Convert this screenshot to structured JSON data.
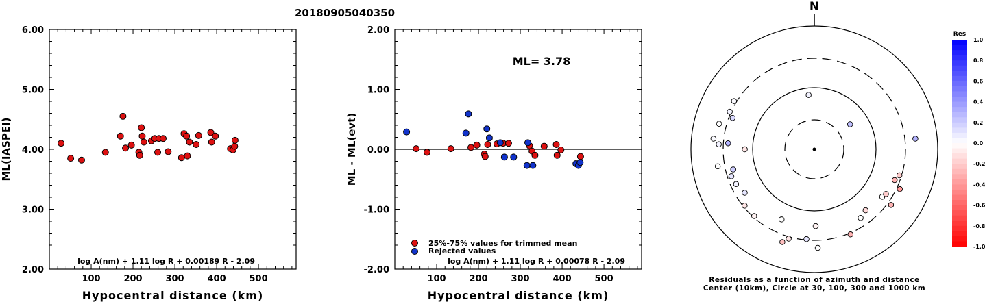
{
  "figure_title": "20180905040350",
  "chart_data": [
    {
      "type": "scatter",
      "ylabel": "ML(IASPEI)",
      "xlabel": "Hypocentral distance (km)",
      "xlim": [
        0,
        590
      ],
      "ylim": [
        2.0,
        6.0
      ],
      "xticks": [
        "100",
        "200",
        "300",
        "400",
        "500"
      ],
      "yticks": [
        "2.00",
        "3.00",
        "4.00",
        "5.00",
        "6.00"
      ],
      "formula": "log A(nm) + 1.11 log R + 0.00189 R - 2.09",
      "point_color": "#dd1111",
      "points": [
        [
          28,
          4.1
        ],
        [
          51,
          3.85
        ],
        [
          77,
          3.82
        ],
        [
          134,
          3.95
        ],
        [
          170,
          4.22
        ],
        [
          176,
          4.55
        ],
        [
          182,
          4.02
        ],
        [
          196,
          4.07
        ],
        [
          214,
          3.95
        ],
        [
          216,
          3.9
        ],
        [
          220,
          4.36
        ],
        [
          222,
          4.22
        ],
        [
          226,
          4.12
        ],
        [
          244,
          4.14
        ],
        [
          252,
          4.18
        ],
        [
          259,
          3.95
        ],
        [
          262,
          4.18
        ],
        [
          272,
          4.18
        ],
        [
          284,
          3.96
        ],
        [
          316,
          3.86
        ],
        [
          322,
          4.26
        ],
        [
          328,
          4.22
        ],
        [
          330,
          3.89
        ],
        [
          335,
          4.12
        ],
        [
          351,
          4.08
        ],
        [
          357,
          4.23
        ],
        [
          386,
          4.28
        ],
        [
          388,
          4.12
        ],
        [
          397,
          4.22
        ],
        [
          433,
          4.01
        ],
        [
          439,
          3.99
        ],
        [
          443,
          4.05
        ],
        [
          444,
          4.15
        ]
      ]
    },
    {
      "type": "scatter",
      "ylabel": "ML - ML(evt)",
      "xlabel": "Hypocentral distance (km)",
      "xlim": [
        0,
        590
      ],
      "ylim": [
        -2.0,
        2.0
      ],
      "xticks": [
        "100",
        "200",
        "300",
        "400",
        "500"
      ],
      "yticks": [
        "-2.00",
        "-1.00",
        "0.00",
        "1.00",
        "2.00"
      ],
      "annotation": "ML= 3.78",
      "formula": "log A(nm) + 1.11 log R + 0.00078 R - 2.09",
      "legend": [
        {
          "label": "25%-75% values for trimmed mean",
          "color": "#dd1111"
        },
        {
          "label": "Rejected values",
          "color": "#1133cc"
        }
      ],
      "series": [
        {
          "name": "25%-75% values for trimmed mean",
          "color": "#dd1111",
          "points": [
            [
              51,
              0.01
            ],
            [
              77,
              -0.05
            ],
            [
              134,
              0.01
            ],
            [
              182,
              0.03
            ],
            [
              196,
              0.07
            ],
            [
              214,
              -0.08
            ],
            [
              216,
              -0.12
            ],
            [
              222,
              0.08
            ],
            [
              244,
              0.09
            ],
            [
              259,
              0.1
            ],
            [
              272,
              0.1
            ],
            [
              322,
              0.06
            ],
            [
              328,
              -0.03
            ],
            [
              335,
              -0.1
            ],
            [
              357,
              0.05
            ],
            [
              386,
              0.08
            ],
            [
              388,
              -0.1
            ],
            [
              397,
              -0.01
            ],
            [
              444,
              -0.12
            ]
          ]
        },
        {
          "name": "Rejected values",
          "color": "#1133cc",
          "points": [
            [
              28,
              0.29
            ],
            [
              170,
              0.27
            ],
            [
              176,
              0.59
            ],
            [
              220,
              0.34
            ],
            [
              226,
              0.19
            ],
            [
              252,
              0.11
            ],
            [
              262,
              -0.13
            ],
            [
              284,
              -0.13
            ],
            [
              316,
              -0.27
            ],
            [
              318,
              0.11
            ],
            [
              330,
              -0.27
            ],
            [
              433,
              -0.24
            ],
            [
              439,
              -0.27
            ],
            [
              443,
              -0.22
            ]
          ]
        }
      ]
    },
    {
      "type": "scatter",
      "subtype": "polar",
      "north_label": "N",
      "caption_line1": "Residuals as a function of azimuth and distance",
      "caption_line2": "Center (10km), Circle at 30, 100, 300 and 1000 km",
      "colorbar_title": "Res",
      "colorbar_ticks": [
        "1.0",
        "0.8",
        "0.6",
        "0.4",
        "0.2",
        "0.0",
        "-0.2",
        "-0.4",
        "-0.6",
        "-0.8",
        "-1.0"
      ],
      "points": [
        {
          "res": 0.05,
          "azimuth": 354,
          "distance": 77
        },
        {
          "res": 0.25,
          "azimuth": 55,
          "distance": 51
        },
        {
          "res": 0.3,
          "azimuth": 84,
          "distance": 443
        },
        {
          "res": 0.02,
          "azimuth": 301,
          "distance": 330
        },
        {
          "res": 0.05,
          "azimuth": 294,
          "distance": 316
        },
        {
          "res": 0.15,
          "azimuth": 291,
          "distance": 262
        },
        {
          "res": 0.0,
          "azimuth": 285,
          "distance": 396
        },
        {
          "res": 0.02,
          "azimuth": 276,
          "distance": 440
        },
        {
          "res": 0.3,
          "azimuth": 274,
          "distance": 252
        },
        {
          "res": 0.05,
          "azimuth": 273,
          "distance": 355
        },
        {
          "res": -0.1,
          "azimuth": 270,
          "distance": 134
        },
        {
          "res": 0.0,
          "azimuth": 260,
          "distance": 388
        },
        {
          "res": 0.2,
          "azimuth": 256,
          "distance": 226
        },
        {
          "res": 0.1,
          "azimuth": 252,
          "distance": 259
        },
        {
          "res": 0.05,
          "azimuth": 246,
          "distance": 244
        },
        {
          "res": 0.1,
          "azimuth": 238,
          "distance": 214
        },
        {
          "res": -0.1,
          "azimuth": 231,
          "distance": 284
        },
        {
          "res": -0.05,
          "azimuth": 222,
          "distance": 286
        },
        {
          "res": 0.0,
          "azimuth": 205,
          "distance": 180
        },
        {
          "res": -0.25,
          "azimuth": 199,
          "distance": 390
        },
        {
          "res": -0.1,
          "azimuth": 196,
          "distance": 322
        },
        {
          "res": 0.1,
          "azimuth": 185,
          "distance": 290
        },
        {
          "res": -0.05,
          "azimuth": 179,
          "distance": 176
        },
        {
          "res": 0.0,
          "azimuth": 178,
          "distance": 398
        },
        {
          "res": -0.3,
          "azimuth": 157,
          "distance": 316
        },
        {
          "res": 0.0,
          "azimuth": 146,
          "distance": 220
        },
        {
          "res": -0.15,
          "azimuth": 140,
          "distance": 196
        },
        {
          "res": -0.3,
          "azimuth": 126,
          "distance": 344
        },
        {
          "res": 0.0,
          "azimuth": 125,
          "distance": 220
        },
        {
          "res": -0.2,
          "azimuth": 122,
          "distance": 234
        },
        {
          "res": -0.4,
          "azimuth": 115,
          "distance": 338
        },
        {
          "res": -0.3,
          "azimuth": 111,
          "distance": 248
        },
        {
          "res": -0.2,
          "azimuth": 107,
          "distance": 277
        }
      ]
    }
  ]
}
